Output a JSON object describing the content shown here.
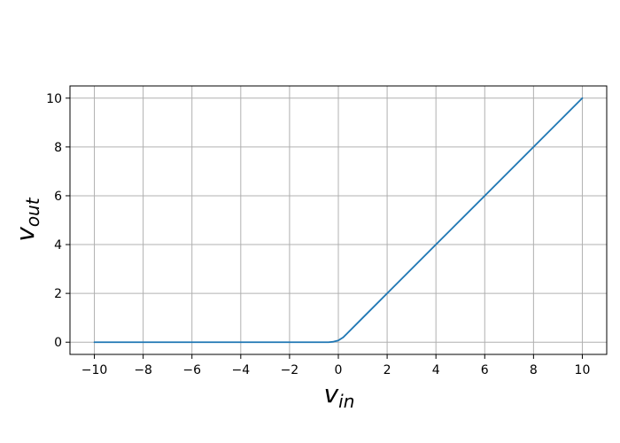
{
  "chart_data": {
    "type": "line",
    "title": "",
    "xlabel": {
      "main": "v",
      "sub": "in"
    },
    "ylabel": {
      "main": "v",
      "sub": "out"
    },
    "xlim": [
      -11,
      11
    ],
    "ylim": [
      -0.5,
      10.5
    ],
    "x_ticks": [
      -10,
      -8,
      -6,
      -4,
      -2,
      0,
      2,
      4,
      6,
      8,
      10
    ],
    "y_ticks": [
      0,
      2,
      4,
      6,
      8,
      10
    ],
    "x_tick_labels": [
      "−10",
      "−8",
      "−6",
      "−4",
      "−2",
      "0",
      "2",
      "4",
      "6",
      "8",
      "10"
    ],
    "y_tick_labels": [
      "0",
      "2",
      "4",
      "6",
      "8",
      "10"
    ],
    "grid": true,
    "legend": "none",
    "series": [
      {
        "color": "#1f77b4",
        "x": [
          -10,
          -2,
          -0.4,
          -0.2,
          0,
          0.2,
          0.4,
          1,
          2,
          4,
          6,
          8,
          10
        ],
        "y": [
          0,
          0,
          0,
          0.02,
          0.07,
          0.2,
          0.4,
          1,
          2,
          4,
          6,
          8,
          10
        ]
      }
    ]
  },
  "colors": {
    "line": "#1f77b4",
    "grid": "#b0b0b0",
    "axes": "#000000",
    "background": "#ffffff"
  }
}
